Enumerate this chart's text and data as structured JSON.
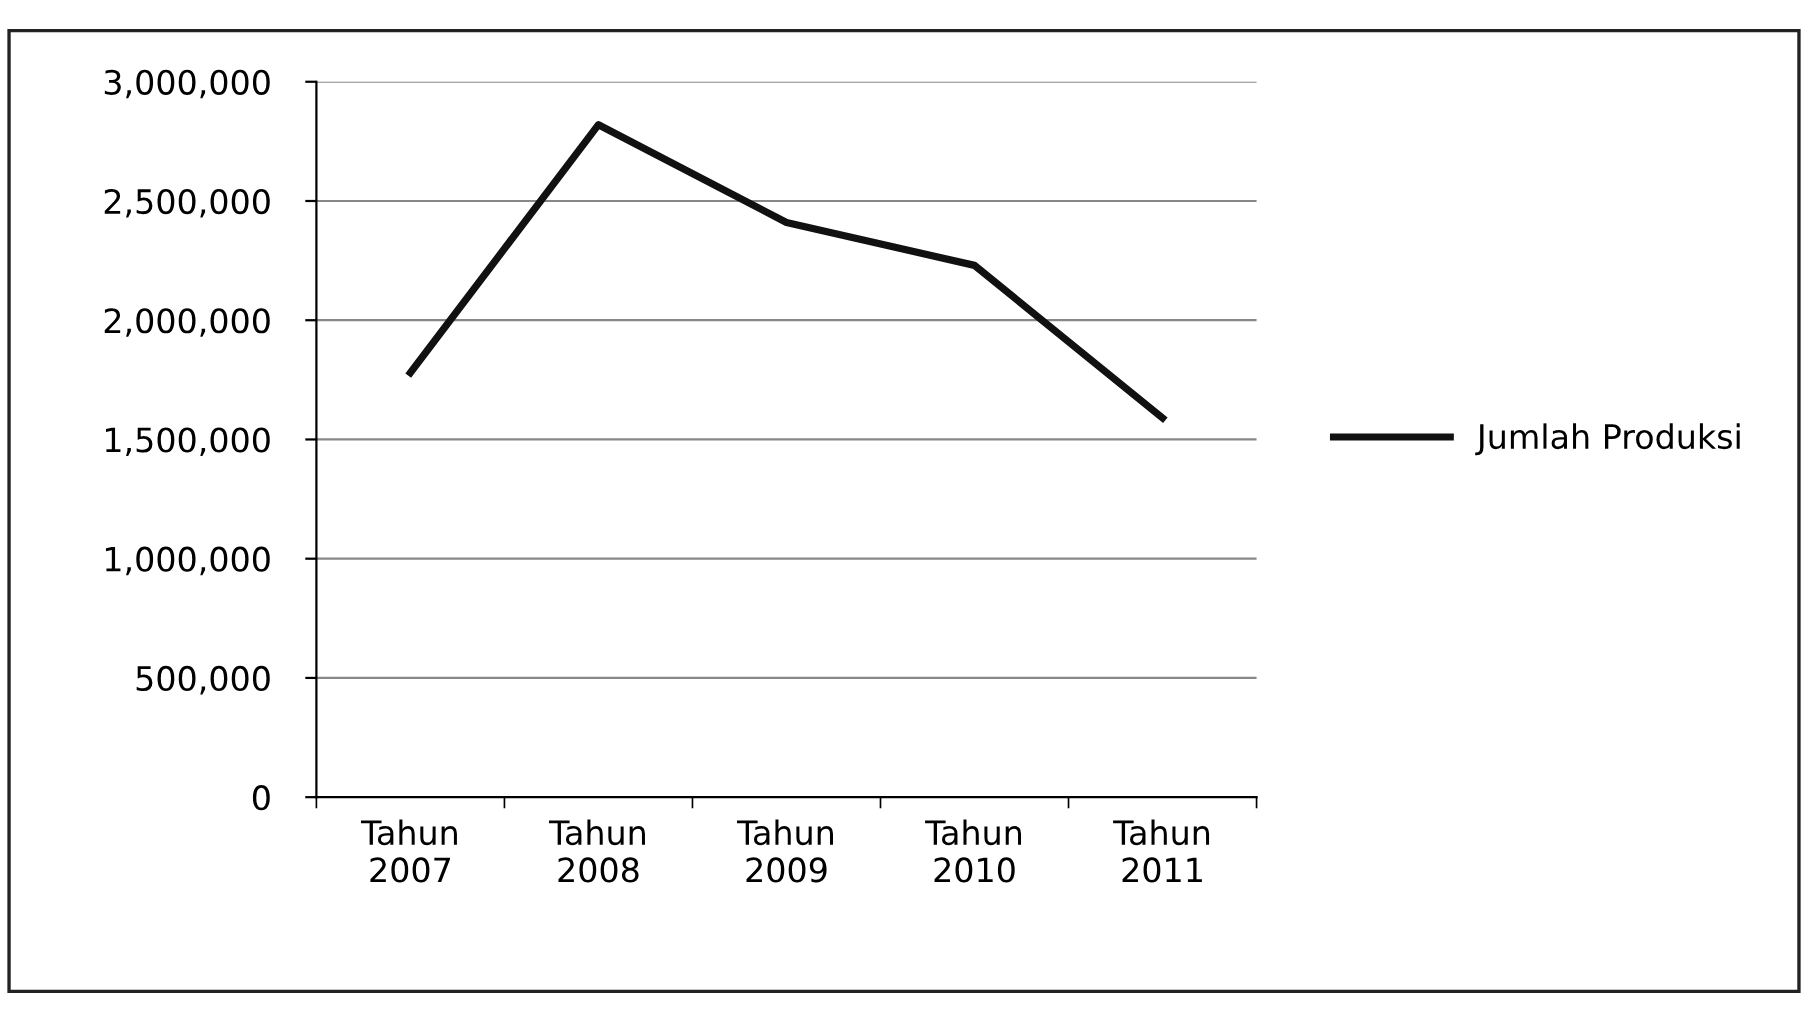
{
  "chart_data": {
    "type": "line",
    "categories": [
      "Tahun\n2007",
      "Tahun\n2008",
      "Tahun\n2009",
      "Tahun\n2010",
      "Tahun\n2011"
    ],
    "series": [
      {
        "name": "Jumlah Produksi",
        "color": "#111111",
        "values": [
          1780000,
          2820000,
          2410000,
          2230000,
          1590000
        ]
      }
    ],
    "ylim": [
      0,
      3000000
    ],
    "yticks": [
      {
        "value": 0,
        "label": "0"
      },
      {
        "value": 500000,
        "label": "500,000"
      },
      {
        "value": 1000000,
        "label": "1,000,000"
      },
      {
        "value": 1500000,
        "label": "1,500,000"
      },
      {
        "value": 2000000,
        "label": "2,000,000"
      },
      {
        "value": 2500000,
        "label": "2,500,000"
      },
      {
        "value": 3000000,
        "label": "3,000,000"
      }
    ],
    "grid": "y",
    "legend": "right",
    "marker": "none",
    "line_style": "solid"
  }
}
